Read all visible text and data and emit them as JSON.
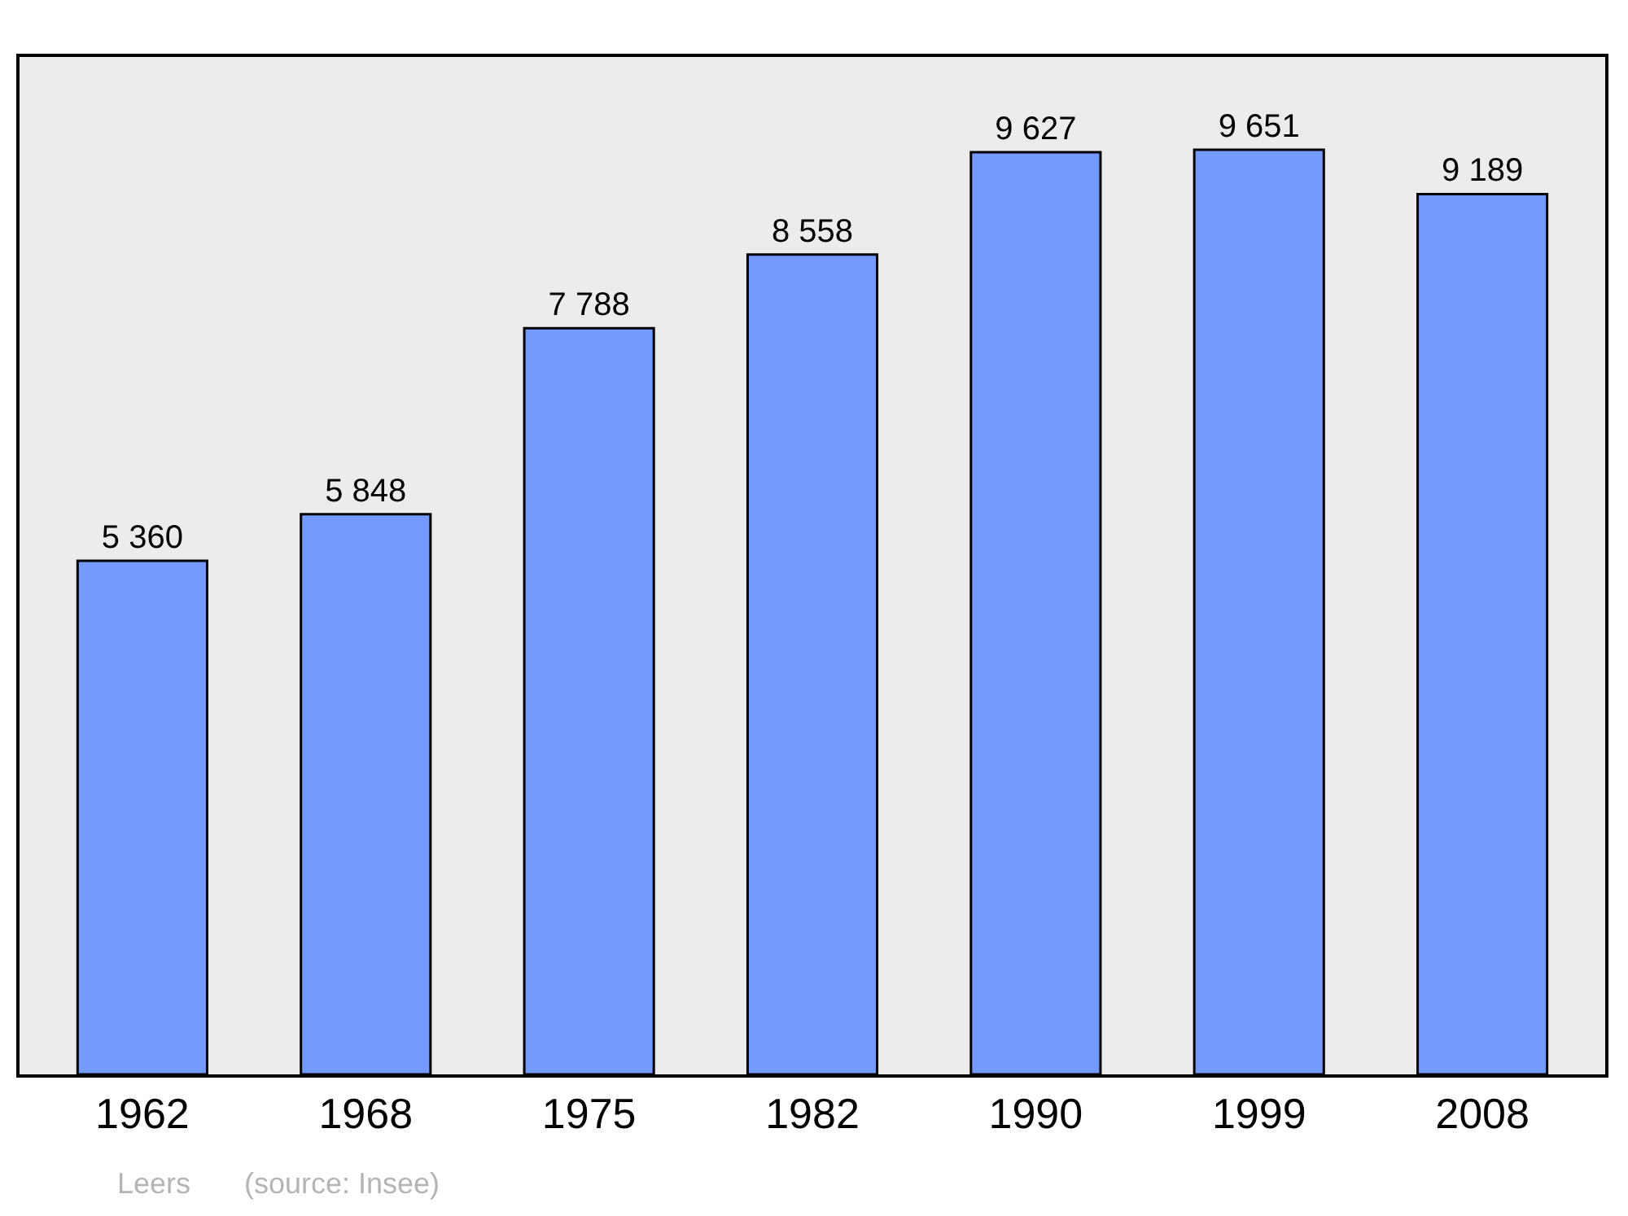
{
  "chart_data": {
    "type": "bar",
    "categories": [
      "1962",
      "1968",
      "1975",
      "1982",
      "1990",
      "1999",
      "2008"
    ],
    "values": [
      5360,
      5848,
      7788,
      8558,
      9627,
      9651,
      9189
    ],
    "value_labels": [
      "5 360",
      "5 848",
      "7 788",
      "8 558",
      "9 627",
      "9 651",
      "9 189"
    ],
    "color": "#7499ff",
    "ylim": [
      0,
      10620
    ],
    "tick_labels": "x",
    "grid": false,
    "annotations": [
      "Leers",
      "(source: Insee)"
    ]
  }
}
